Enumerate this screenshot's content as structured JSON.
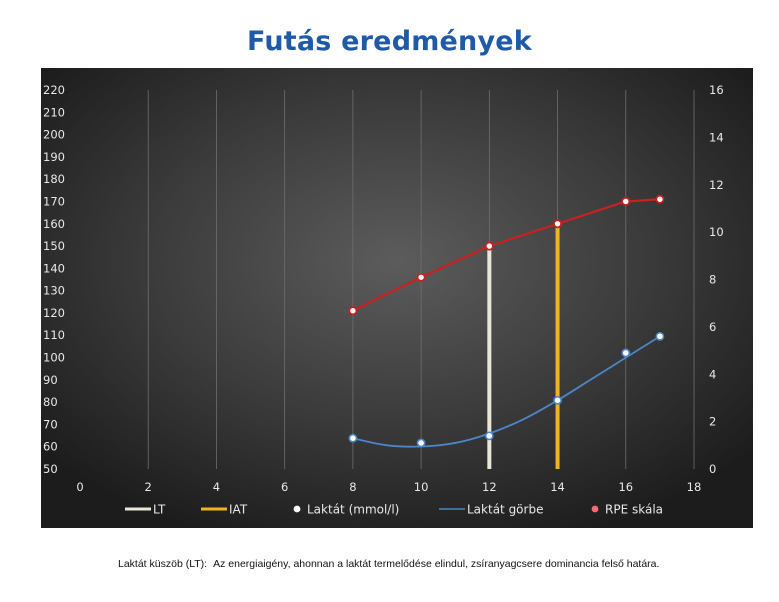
{
  "chart_data": {
    "type": "line",
    "title": "Futás eredmények",
    "x": [
      8,
      10,
      12,
      14,
      16,
      17
    ],
    "xticks": [
      0,
      2,
      4,
      6,
      8,
      10,
      12,
      14,
      16,
      18
    ],
    "xlim": [
      0,
      18
    ],
    "ylim_left": [
      50,
      220
    ],
    "yticks_left": [
      50,
      60,
      70,
      80,
      90,
      100,
      110,
      120,
      130,
      140,
      150,
      160,
      170,
      180,
      190,
      200,
      210,
      220
    ],
    "ylim_right": [
      0,
      16
    ],
    "yticks_right": [
      0,
      2,
      4,
      6,
      8,
      10,
      12,
      14,
      16
    ],
    "grid": "vertical",
    "legend_position": "bottom",
    "series": [
      {
        "name": "RPE skála",
        "axis": "left",
        "color": "#cc1f1f",
        "marker": "circle",
        "x": [
          8,
          10,
          12,
          14,
          16,
          17
        ],
        "values": [
          121,
          136,
          150,
          160,
          170,
          171
        ]
      },
      {
        "name": "Laktát (mmol/l)",
        "axis": "right",
        "color": "#ffffff",
        "marker": "circle",
        "x": [
          8,
          10,
          12,
          14,
          16,
          17
        ],
        "values": [
          1.3,
          1.1,
          1.4,
          2.9,
          4.9,
          5.6
        ]
      },
      {
        "name": "Laktát görbe",
        "axis": "right",
        "color": "#4a86c8",
        "marker": "none",
        "type": "smooth-line",
        "x": [
          8,
          9,
          10,
          11,
          12,
          13,
          14,
          15,
          16,
          17
        ],
        "values": [
          1.3,
          1.0,
          0.95,
          1.1,
          1.5,
          2.1,
          2.9,
          3.8,
          4.7,
          5.6
        ]
      },
      {
        "name": "LT",
        "axis": "left",
        "color": "#ebe7d8",
        "type": "vertical-bar",
        "x": [
          12
        ],
        "values": [
          150
        ]
      },
      {
        "name": "IAT",
        "axis": "left",
        "color": "#f0b41e",
        "type": "vertical-bar",
        "x": [
          14
        ],
        "values": [
          160
        ]
      }
    ],
    "legend_order": [
      "LT",
      "IAT",
      "Laktát (mmol/l)",
      "Laktát görbe",
      "RPE skála"
    ]
  },
  "footnote": {
    "term": "Laktát küszöb (LT):",
    "definition": "Az energiaigény, ahonnan a laktát termelődése elindul, zsíranyagcsere dominancia felső határa."
  },
  "colors": {
    "title": "#1e5aa8",
    "panel_center": "#555555",
    "panel_edge": "#1e1e1e"
  }
}
